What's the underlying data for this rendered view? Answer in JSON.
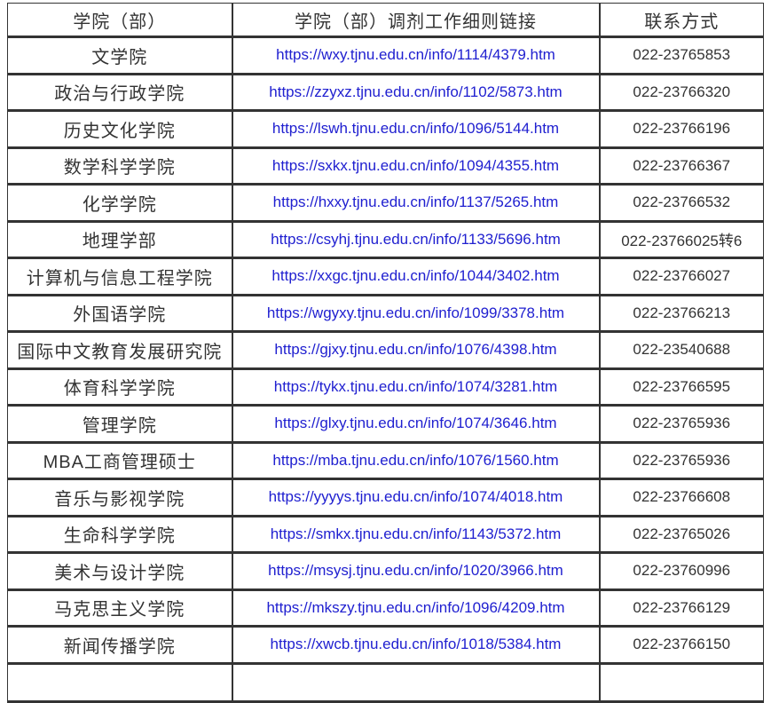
{
  "colors": {
    "border": "#333333",
    "text": "#333333",
    "link": "#2020d0",
    "background": "#ffffff"
  },
  "table": {
    "columns": [
      {
        "label": "学院（部）"
      },
      {
        "label": "学院（部）调剂工作细则链接"
      },
      {
        "label": "联系方式"
      }
    ],
    "rows": [
      {
        "college": "文学院",
        "link": "https://wxy.tjnu.edu.cn/info/1114/4379.htm",
        "phone": "022-23765853"
      },
      {
        "college": "政治与行政学院",
        "link": "https://zzyxz.tjnu.edu.cn/info/1102/5873.htm",
        "phone": "022-23766320"
      },
      {
        "college": "历史文化学院",
        "link": "https://lswh.tjnu.edu.cn/info/1096/5144.htm",
        "phone": "022-23766196"
      },
      {
        "college": "数学科学学院",
        "link": "https://sxkx.tjnu.edu.cn/info/1094/4355.htm",
        "phone": "022-23766367"
      },
      {
        "college": "化学学院",
        "link": "https://hxxy.tjnu.edu.cn/info/1137/5265.htm",
        "phone": "022-23766532"
      },
      {
        "college": "地理学部",
        "link": "https://csyhj.tjnu.edu.cn/info/1133/5696.htm",
        "phone": "022-23766025转6"
      },
      {
        "college": "计算机与信息工程学院",
        "link": "https://xxgc.tjnu.edu.cn/info/1044/3402.htm",
        "phone": "022-23766027"
      },
      {
        "college": "外国语学院",
        "link": "https://wgyxy.tjnu.edu.cn/info/1099/3378.htm",
        "phone": "022-23766213"
      },
      {
        "college": "国际中文教育发展研究院",
        "link": "https://gjxy.tjnu.edu.cn/info/1076/4398.htm",
        "phone": "022-23540688"
      },
      {
        "college": "体育科学学院",
        "link": "https://tykx.tjnu.edu.cn/info/1074/3281.htm",
        "phone": "022-23766595"
      },
      {
        "college": "管理学院",
        "link": "https://glxy.tjnu.edu.cn/info/1074/3646.htm",
        "phone": "022-23765936"
      },
      {
        "college": "MBA工商管理硕士",
        "link": "https://mba.tjnu.edu.cn/info/1076/1560.htm",
        "phone": "022-23765936"
      },
      {
        "college": "音乐与影视学院",
        "link": "https://yyyys.tjnu.edu.cn/info/1074/4018.htm",
        "phone": "022-23766608"
      },
      {
        "college": "生命科学学院",
        "link": "https://smkx.tjnu.edu.cn/info/1143/5372.htm",
        "phone": "022-23765026"
      },
      {
        "college": "美术与设计学院",
        "link": "https://msysj.tjnu.edu.cn/info/1020/3966.htm",
        "phone": "022-23760996"
      },
      {
        "college": "马克思主义学院",
        "link": "https://mkszy.tjnu.edu.cn/info/1096/4209.htm",
        "phone": "022-23766129"
      },
      {
        "college": "新闻传播学院",
        "link": "https://xwcb.tjnu.edu.cn/info/1018/5384.htm",
        "phone": "022-23766150"
      }
    ],
    "partial_bottom_row": true
  }
}
